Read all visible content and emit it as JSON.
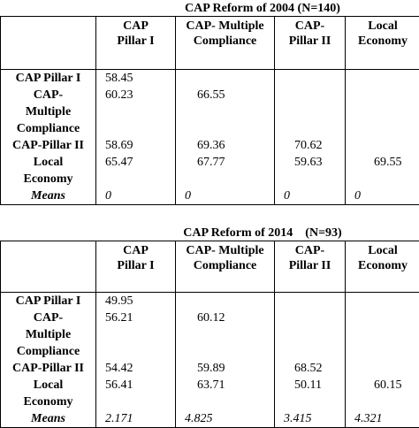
{
  "tables": [
    {
      "title": "CAP Reform of 2004 (N=140)",
      "headers": [
        "",
        "CAP Pillar I",
        "CAP- Multiple Compliance",
        "CAP- Pillar II",
        "Local Economy"
      ],
      "rows": [
        {
          "label": "CAP Pillar I",
          "values": [
            "58.45",
            "",
            "",
            ""
          ]
        },
        {
          "label": "CAP- Multiple Compliance",
          "values": [
            "60.23",
            "66.55",
            "",
            ""
          ]
        },
        {
          "label": "CAP-Pillar II",
          "values": [
            "58.69",
            "69.36",
            "70.62",
            ""
          ]
        },
        {
          "label": "Local Economy",
          "values": [
            "65.47",
            "67.77",
            "59.63",
            "69.55"
          ]
        },
        {
          "label": "Means",
          "values": [
            "0",
            "0",
            "0",
            "0"
          ]
        }
      ]
    },
    {
      "title": "CAP Reform of 2014    (N=93)",
      "headers": [
        "",
        "CAP Pillar I",
        "CAP- Multiple Compliance",
        "CAP- Pillar II",
        "Local Economy"
      ],
      "rows": [
        {
          "label": "CAP Pillar I",
          "values": [
            "49.95",
            "",
            "",
            ""
          ]
        },
        {
          "label": "CAP- Multiple Compliance",
          "values": [
            "56.21",
            "60.12",
            "",
            ""
          ]
        },
        {
          "label": "CAP-Pillar II",
          "values": [
            "54.42",
            "59.89",
            "68.52",
            ""
          ]
        },
        {
          "label": "Local Economy",
          "values": [
            "56.41",
            "63.71",
            "50.11",
            "60.15"
          ]
        },
        {
          "label": "Means",
          "values": [
            "2.171",
            "4.825",
            "3.415",
            "4.321"
          ]
        }
      ]
    }
  ]
}
